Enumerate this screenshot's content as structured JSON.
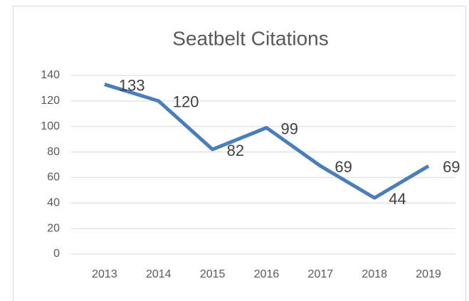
{
  "chart_data": {
    "type": "line",
    "title": "Seatbelt Citations",
    "categories": [
      "2013",
      "2014",
      "2015",
      "2016",
      "2017",
      "2018",
      "2019"
    ],
    "series": [
      {
        "name": "Seatbelt Citations",
        "color": "#4a7ebb",
        "values": [
          133,
          120,
          82,
          99,
          69,
          44,
          69
        ]
      }
    ],
    "ylim": [
      0,
      140
    ],
    "yticks": [
      0,
      20,
      40,
      60,
      80,
      100,
      120,
      140
    ],
    "grid": true
  }
}
